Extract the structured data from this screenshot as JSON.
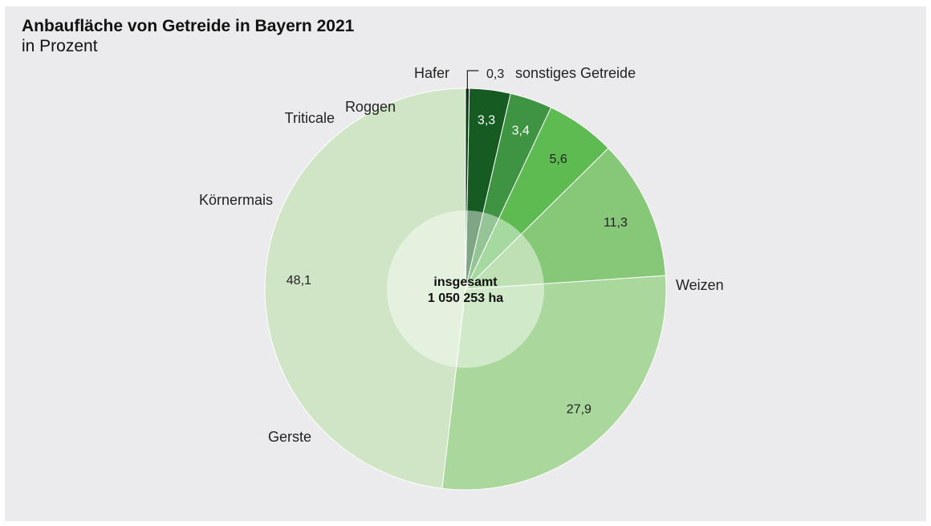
{
  "chart_data": {
    "type": "pie",
    "title": "Anbaufläche von Getreide in Bayern 2021",
    "subtitle": "in Prozent",
    "center_label": [
      "insgesamt",
      "1 050 253 ha"
    ],
    "slices": [
      {
        "name": "Weizen",
        "value": 48.1,
        "value_label": "48,1",
        "color": "#cfe5c5",
        "value_text_color": "#222222"
      },
      {
        "name": "Gerste",
        "value": 27.9,
        "value_label": "27,9",
        "color": "#aad79b",
        "value_text_color": "#222222"
      },
      {
        "name": "Körnermais",
        "value": 11.3,
        "value_label": "11,3",
        "color": "#87c878",
        "value_text_color": "#222222"
      },
      {
        "name": "Triticale",
        "value": 5.6,
        "value_label": "5,6",
        "color": "#5dbb52",
        "value_text_color": "#222222"
      },
      {
        "name": "Roggen",
        "value": 3.4,
        "value_label": "3,4",
        "color": "#3e9442",
        "value_text_color": "#ffffff"
      },
      {
        "name": "Hafer",
        "value": 3.3,
        "value_label": "3,3",
        "color": "#165c22",
        "value_text_color": "#ffffff"
      },
      {
        "name": "sonstiges Getreide",
        "value": 0.3,
        "value_label": "0,3",
        "color": "#0b3d14",
        "value_text_color": "#222222"
      }
    ],
    "start_angle": "12 o'clock",
    "direction": "counterclockwise"
  }
}
